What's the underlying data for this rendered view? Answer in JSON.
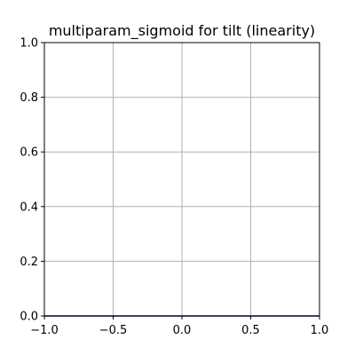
{
  "chart_data": {
    "type": "line",
    "title": "multiparam_sigmoid for tilt (linearity)",
    "xlabel": "",
    "ylabel": "",
    "xlim": [
      -1.0,
      1.0
    ],
    "ylim": [
      0.0,
      1.0
    ],
    "xticks": [
      -1.0,
      -0.5,
      0.0,
      0.5,
      1.0
    ],
    "xtick_labels": [
      "−1.0",
      "−0.5",
      "0.0",
      "0.5",
      "1.0"
    ],
    "yticks": [
      0.0,
      0.2,
      0.4,
      0.6,
      0.8,
      1.0
    ],
    "ytick_labels": [
      "0.0",
      "0.2",
      "0.4",
      "0.6",
      "0.8",
      "1.0"
    ],
    "grid": true,
    "series": [
      {
        "color": "#000080",
        "x": [
          -1.0,
          1.0
        ],
        "y": [
          0.0,
          0.0
        ]
      }
    ],
    "colors": {
      "line": "#000080",
      "grid": "#b0b0b0",
      "axes": "#000000"
    }
  }
}
